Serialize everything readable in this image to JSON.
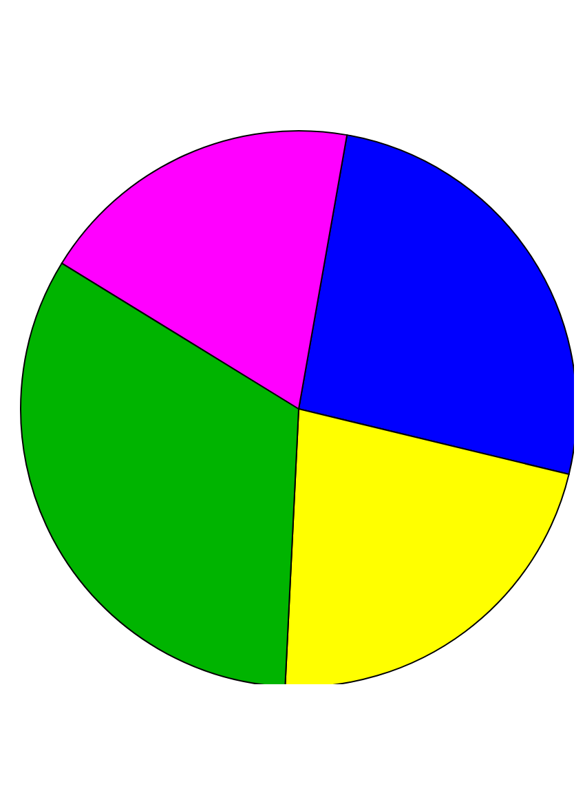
{
  "chart_data": {
    "type": "pie",
    "categories": [
      null,
      null,
      null,
      null
    ],
    "values": [
      26,
      22,
      33,
      19
    ],
    "colors": [
      "#0000ff",
      "#ffff00",
      "#00b400",
      "#ff00ff"
    ],
    "legend": false
  }
}
